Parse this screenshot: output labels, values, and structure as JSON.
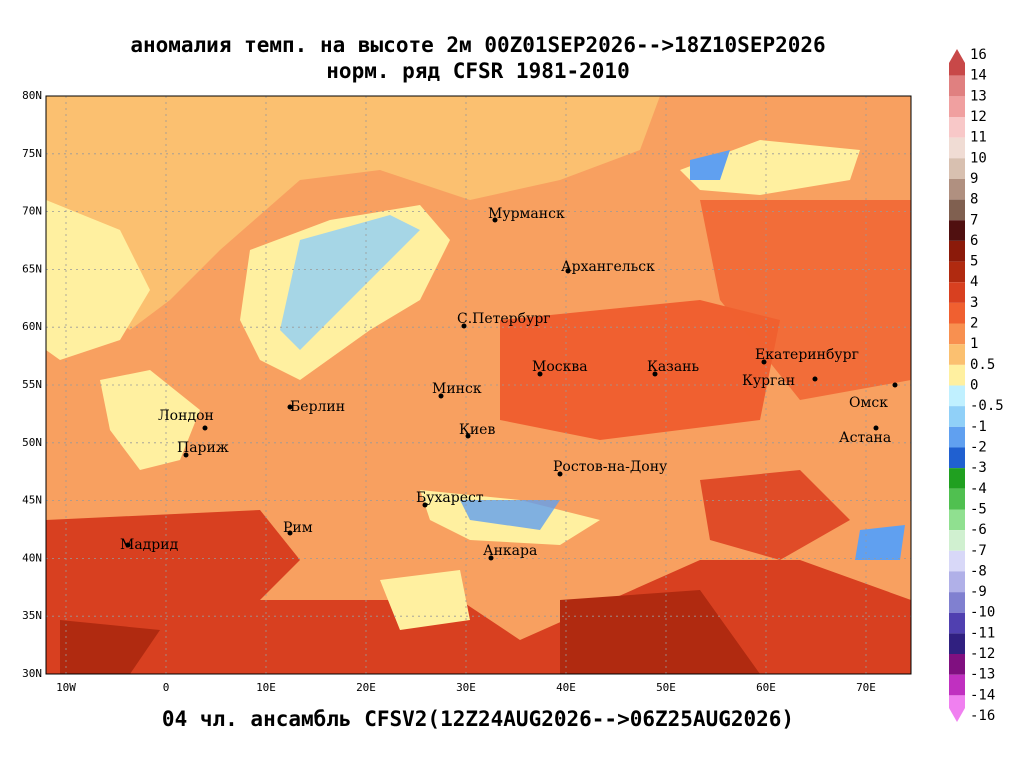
{
  "title": "аномалия темп. на высоте 2м 00Z01SEP2026-->18Z10SEP2026",
  "subtitle": "норм. ряд CFSR 1981-2010",
  "footer": "04 чл. ансамбль CFSV2(12Z24AUG2026-->06Z25AUG2026)",
  "lat_lim": [
    30,
    80
  ],
  "lat_ticks": [
    {
      "value": 30,
      "label": "30N"
    },
    {
      "value": 35,
      "label": "35N"
    },
    {
      "value": 40,
      "label": "40N"
    },
    {
      "value": 45,
      "label": "45N"
    },
    {
      "value": 50,
      "label": "50N"
    },
    {
      "value": 55,
      "label": "55N"
    },
    {
      "value": 60,
      "label": "60N"
    },
    {
      "value": 65,
      "label": "65N"
    },
    {
      "value": 70,
      "label": "70N"
    },
    {
      "value": 75,
      "label": "75N"
    },
    {
      "value": 80,
      "label": "80N"
    }
  ],
  "lon_lim": [
    -12,
    74.5
  ],
  "lon_ticks": [
    {
      "value": -10,
      "label": "10W"
    },
    0,
    {
      "value": 10,
      "label": "10E"
    },
    {
      "value": 20,
      "label": "20E"
    },
    {
      "value": 30,
      "label": "30E"
    },
    {
      "value": 40,
      "label": "40E"
    },
    {
      "value": 50,
      "label": "50E"
    },
    {
      "value": 60,
      "label": "60E"
    },
    {
      "value": 70,
      "label": "70E"
    }
  ],
  "cities": [
    "Мурманск",
    "Архангельск",
    "С.Петербург",
    "Москва",
    "Казань",
    "Екатеринбург",
    "Курган",
    "Омск",
    "Астана",
    "Минск",
    "Берлин",
    "Лондон",
    "Париж",
    "Киев",
    "Ростов-на-Дону",
    "Бухарест",
    "Рим",
    "Мадрид",
    "Анкара"
  ],
  "colorbar": {
    "levels": [
      16,
      14,
      13,
      12,
      11,
      10,
      9,
      8,
      7,
      6,
      5,
      4,
      3,
      2,
      1,
      0.5,
      0,
      -0.5,
      -1,
      -2,
      -3,
      -4,
      -5,
      -6,
      -7,
      -8,
      -9,
      -10,
      -11,
      -12,
      -13,
      -14,
      -16
    ],
    "colors": [
      "#c84848",
      "#e08080",
      "#f0a0a0",
      "#f8c8c8",
      "#f0dcd4",
      "#d8c0b0",
      "#b09080",
      "#806050",
      "#501010",
      "#8b1a0a",
      "#b02a10",
      "#d84020",
      "#f06030",
      "#f89050",
      "#fbc070",
      "#fff0a0",
      "#c0f0ff",
      "#90d0f8",
      "#60a0f0",
      "#2060d0",
      "#20a020",
      "#50c050",
      "#90e090",
      "#d0f0d0",
      "#d8d8f8",
      "#b0b0e8",
      "#8080d0",
      "#5040b0",
      "#302080",
      "#801080",
      "#c030c0",
      "#f080f0"
    ]
  }
}
